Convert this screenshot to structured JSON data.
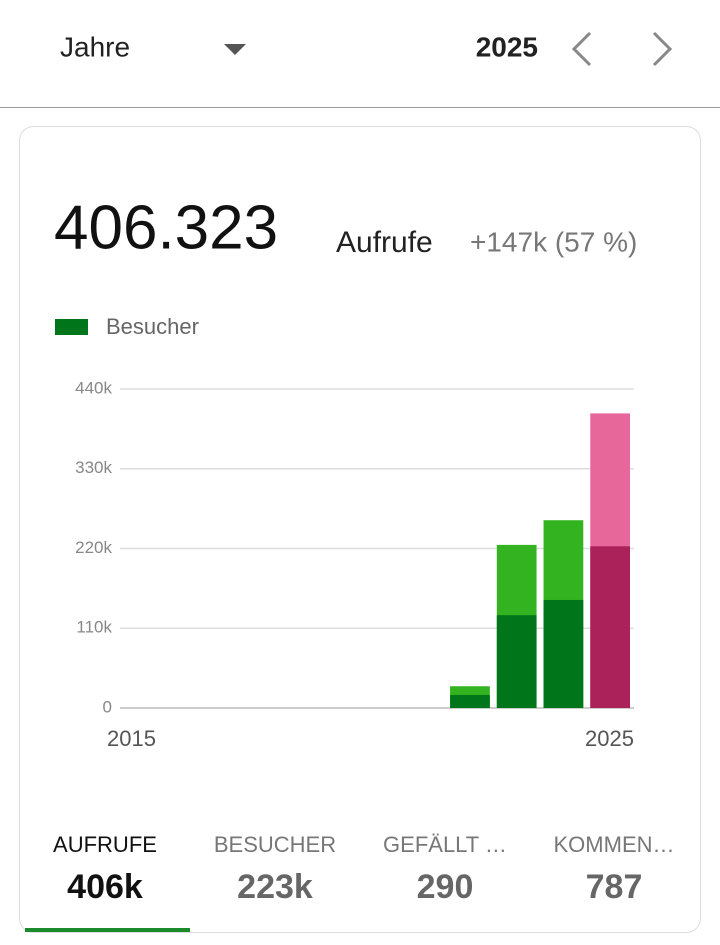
{
  "header": {
    "period": "Jahre",
    "year": "2025"
  },
  "summary": {
    "value": "406.323",
    "label": "Aufrufe",
    "change": "+147k (57 %)"
  },
  "chart_data": {
    "type": "bar",
    "categories": [
      "2015",
      null,
      null,
      null,
      null,
      null,
      null,
      null,
      null,
      null,
      "2025"
    ],
    "series": [
      {
        "color": "#32b31f",
        "colors": [
          "#32b31f",
          "#32b31f",
          "#32b31f",
          "#32b31f",
          "#32b31f",
          "#32b31f",
          "#32b31f",
          "#32b31f",
          "#32b31f",
          "#32b31f",
          "#e8679a"
        ],
        "values": [
          0,
          0,
          0,
          0,
          0,
          0,
          0,
          30000,
          225000,
          259000,
          406323
        ]
      },
      {
        "name": "Besucher",
        "color": "#00751a",
        "colors": [
          "#00751a",
          "#00751a",
          "#00751a",
          "#00751a",
          "#00751a",
          "#00751a",
          "#00751a",
          "#00751a",
          "#00751a",
          "#00751a",
          "#ab225a"
        ],
        "values": [
          0,
          0,
          0,
          0,
          0,
          0,
          0,
          18000,
          128000,
          149000,
          223000
        ]
      }
    ],
    "ylim": [
      0,
      440000
    ],
    "yticks": [
      0,
      {
        "value": 110000,
        "label": "110k"
      },
      {
        "value": 220000,
        "label": "220k"
      },
      {
        "value": 330000,
        "label": "330k"
      },
      {
        "value": 440000,
        "label": "440k"
      }
    ],
    "grid": true
  },
  "tabs": [
    {
      "label": "AUFRUFE",
      "value": "406k"
    },
    {
      "label": "BESUCHER",
      "value": "223k"
    },
    {
      "label": "GEFÄLLT …",
      "value": "290"
    },
    {
      "label": "KOMMEN…",
      "value": "787"
    }
  ]
}
